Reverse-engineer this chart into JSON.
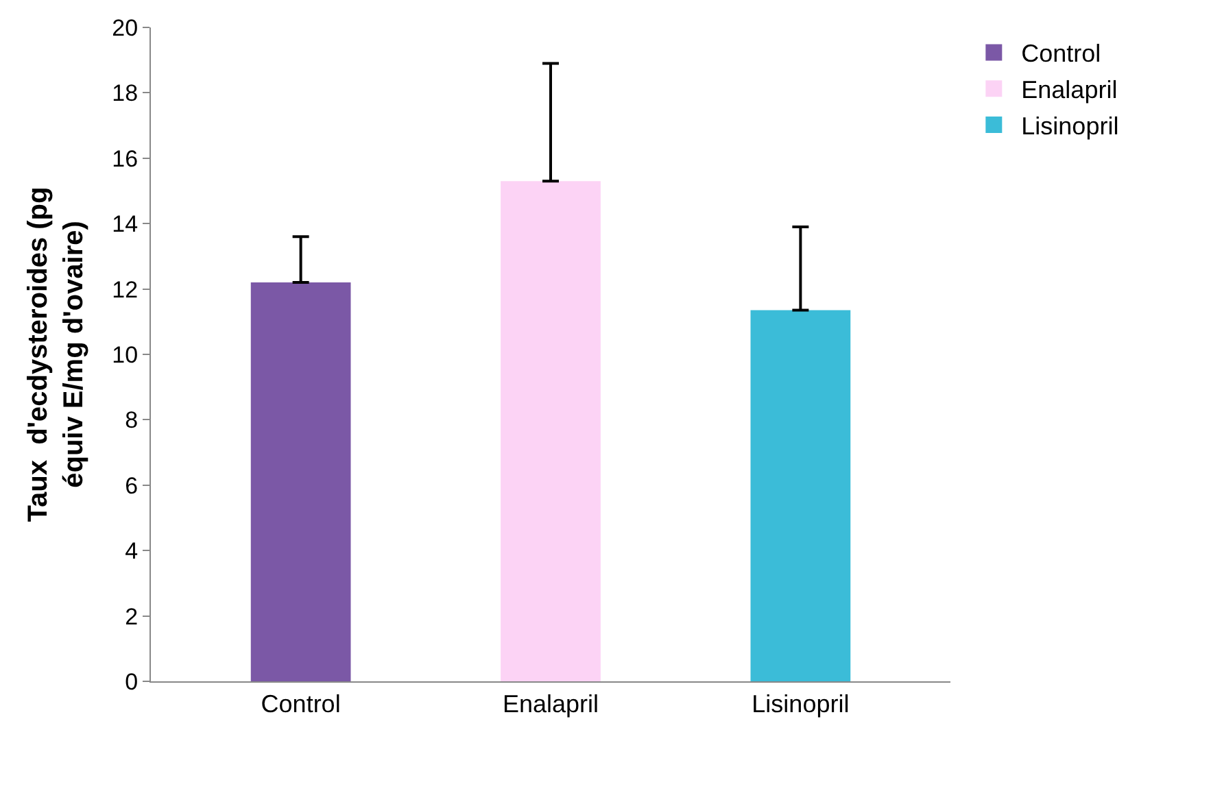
{
  "chart_data": {
    "type": "bar",
    "ylabel": "Taux  d'ecdysteroides (pg équiv E/mg d'ovaire)",
    "categories": [
      "Control",
      "Enalapril",
      "Lisinopril"
    ],
    "series": [
      {
        "name": "Control",
        "color": "#7b58a6",
        "values": [
          12.2,
          null,
          null
        ],
        "errors": [
          [
            12.2,
            13.6
          ],
          null,
          null
        ]
      },
      {
        "name": "Enalapril",
        "color": "#fcd3f5",
        "values": [
          null,
          15.3,
          null
        ],
        "errors": [
          null,
          [
            15.3,
            18.9
          ],
          null
        ]
      },
      {
        "name": "Lisinopril",
        "color": "#3bbcd8",
        "values": [
          null,
          null,
          11.35
        ],
        "errors": [
          null,
          null,
          [
            11.35,
            13.9
          ]
        ]
      }
    ],
    "ylim": [
      0,
      20
    ],
    "yticks": [
      0,
      2,
      4,
      6,
      8,
      10,
      12,
      14,
      16,
      18,
      20
    ],
    "legend": "top right"
  }
}
